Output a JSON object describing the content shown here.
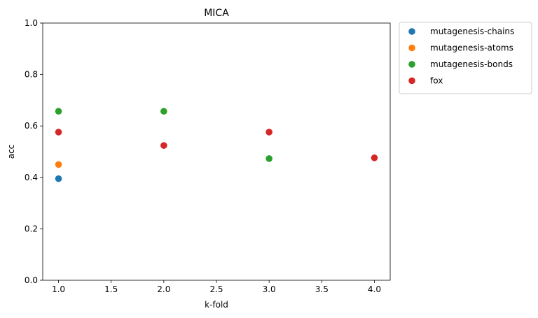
{
  "chart_data": {
    "type": "scatter",
    "title": "MICA",
    "xlabel": "k-fold",
    "ylabel": "acc",
    "xlim": [
      0.85,
      4.15
    ],
    "ylim": [
      0.0,
      1.0
    ],
    "xticks": [
      1.0,
      1.5,
      2.0,
      2.5,
      3.0,
      3.5,
      4.0
    ],
    "xtick_labels": [
      "1.0",
      "1.5",
      "2.0",
      "2.5",
      "3.0",
      "3.5",
      "4.0"
    ],
    "yticks": [
      0.0,
      0.2,
      0.4,
      0.6,
      0.8,
      1.0
    ],
    "ytick_labels": [
      "0.0",
      "0.2",
      "0.4",
      "0.6",
      "0.8",
      "1.0"
    ],
    "grid": false,
    "legend_position": "outside-top-right",
    "series": [
      {
        "name": "mutagenesis-chains",
        "color": "#1f77b4",
        "x": [
          1
        ],
        "y": [
          0.395
        ]
      },
      {
        "name": "mutagenesis-atoms",
        "color": "#ff7f0e",
        "x": [
          1
        ],
        "y": [
          0.45
        ]
      },
      {
        "name": "mutagenesis-bonds",
        "color": "#2ca02c",
        "x": [
          1,
          2,
          3
        ],
        "y": [
          0.657,
          0.657,
          0.473
        ]
      },
      {
        "name": "fox",
        "color": "#d62728",
        "x": [
          1,
          2,
          3,
          4
        ],
        "y": [
          0.576,
          0.524,
          0.576,
          0.476
        ]
      }
    ]
  }
}
